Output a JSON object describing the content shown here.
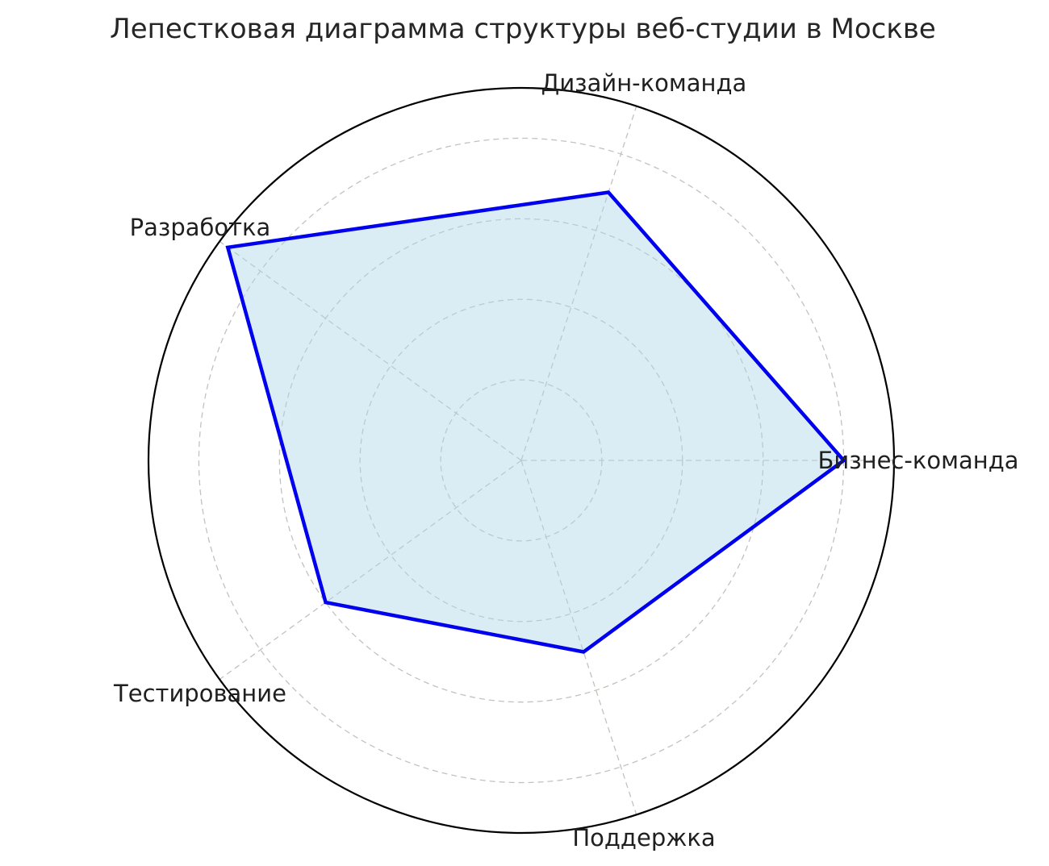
{
  "chart_data": {
    "type": "radar",
    "title": "Лепестковая диаграмма структуры веб-студии в Москве",
    "categories": [
      "Бизнес-команда",
      "Дизайн-команда",
      "Разработка",
      "Тестирование",
      "Поддержка"
    ],
    "values": [
      8,
      7,
      9,
      6,
      5
    ],
    "angles_deg": [
      0,
      72,
      144,
      216,
      288
    ],
    "r_ticks": [
      2,
      4,
      6,
      8
    ],
    "r_max": 9.25,
    "tick_labels_visible": false,
    "legend": "none",
    "grid": "dashed concentric circles and dashed radial spokes",
    "colors": {
      "line": "#0000EE",
      "fill": "#ADD8E6",
      "fill_opacity": 0.45,
      "grid": "#c5c1bd",
      "outline": "#000000",
      "text": "#262626",
      "background": "#ffffff"
    }
  }
}
